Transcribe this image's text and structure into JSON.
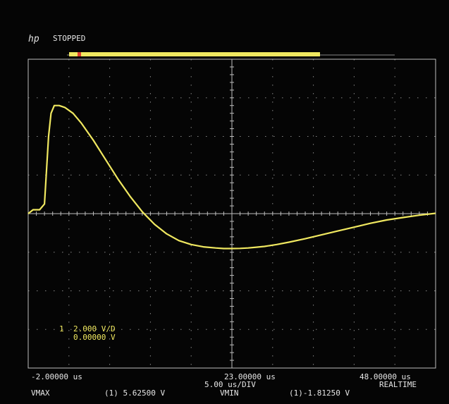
{
  "header": {
    "logo": "hp",
    "status": "STOPPED"
  },
  "channel": {
    "number": "1",
    "scale": "2.000  V/D",
    "offset": "0.00000  V"
  },
  "timebase": {
    "left": "-2.00000 us",
    "center": "23.00000 us",
    "right": "48.00000 us",
    "per_div": "5.00 us/DIV",
    "mode": "REALTIME"
  },
  "measurements": {
    "vmax_label": "VMAX",
    "vmax_value": "(1) 5.62500 V",
    "vmin_label": "VMIN",
    "vmin_value": "(1)-1.81250 V"
  },
  "colors": {
    "screen": "#050505",
    "trace": "#f0e860",
    "grid": "#bdbdbd",
    "text": "#e6e6e6"
  },
  "chart_data": {
    "type": "line",
    "xlabel": "",
    "ylabel": "",
    "xlim": [
      -2,
      48
    ],
    "ylim": [
      -8,
      8
    ],
    "grid": true,
    "series": [
      {
        "x": [
          -2.0,
          -1.4,
          -0.6,
          0.0,
          0.5,
          0.8,
          1.2,
          1.8,
          2.5,
          3.5,
          4.5,
          6.0,
          7.5,
          9.0,
          10.5,
          12.0,
          13.5,
          15.0,
          16.5,
          18.0,
          19.5,
          21.0,
          22.0,
          23.0,
          24.0,
          25.0,
          26.0,
          27.0,
          28.5,
          30.0,
          32.0,
          34.0,
          36.0,
          38.0,
          40.0,
          42.0,
          44.0,
          46.0,
          48.0
        ],
        "y": [
          0.0,
          0.2,
          0.2,
          0.5,
          4.0,
          5.2,
          5.6,
          5.6,
          5.5,
          5.2,
          4.7,
          3.8,
          2.8,
          1.8,
          0.9,
          0.1,
          -0.55,
          -1.05,
          -1.4,
          -1.6,
          -1.72,
          -1.78,
          -1.81,
          -1.81,
          -1.8,
          -1.78,
          -1.74,
          -1.7,
          -1.6,
          -1.48,
          -1.3,
          -1.1,
          -0.9,
          -0.7,
          -0.5,
          -0.33,
          -0.2,
          -0.08,
          0.02
        ]
      }
    ]
  }
}
